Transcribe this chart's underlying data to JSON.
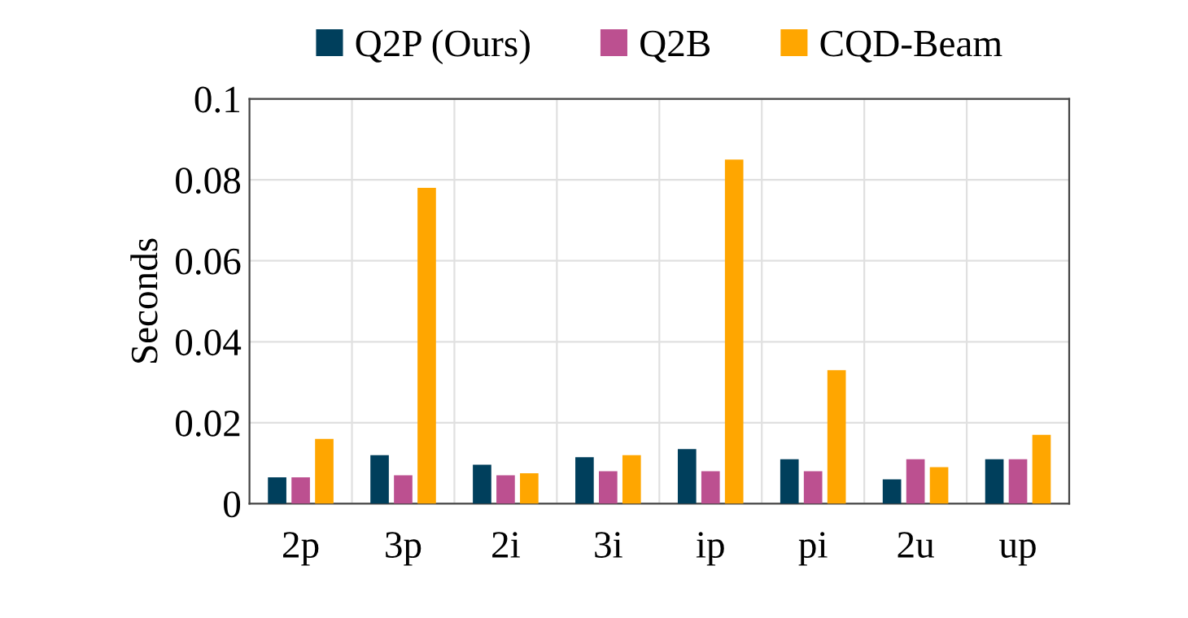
{
  "chart_data": {
    "type": "bar",
    "ylabel": "Seconds",
    "categories": [
      "2p",
      "3p",
      "2i",
      "3i",
      "ip",
      "pi",
      "2u",
      "up"
    ],
    "series": [
      {
        "name": "Q2P (Ours)",
        "color": "#003f5c",
        "values": [
          0.0065,
          0.012,
          0.0096,
          0.0115,
          0.0135,
          0.011,
          0.006,
          0.011
        ]
      },
      {
        "name": "Q2B",
        "color": "#bc5090",
        "values": [
          0.0065,
          0.007,
          0.007,
          0.008,
          0.008,
          0.008,
          0.011,
          0.011
        ]
      },
      {
        "name": "CQD-Beam",
        "color": "#ffa600",
        "values": [
          0.016,
          0.078,
          0.0075,
          0.012,
          0.085,
          0.033,
          0.009,
          0.017
        ]
      }
    ],
    "ylim": [
      0,
      0.1
    ],
    "yticks": [
      0,
      0.02,
      0.04,
      0.06,
      0.08,
      0.1
    ],
    "grid": true,
    "legend": "top"
  }
}
